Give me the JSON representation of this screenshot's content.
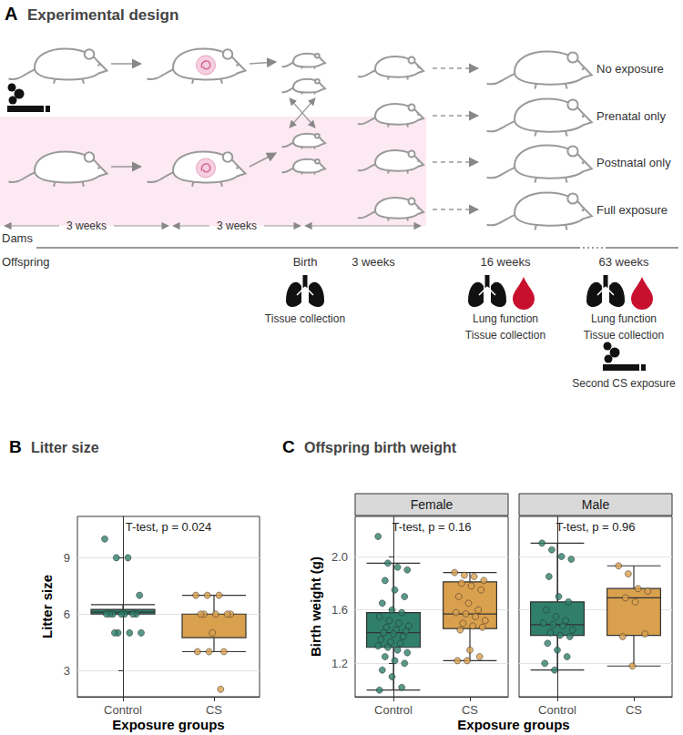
{
  "diagram": {
    "panel": "A",
    "title": "Experimental design",
    "groups": [
      "No exposure",
      "Prenatal only",
      "Postnatal only",
      "Full exposure"
    ],
    "dams_label": "Dams",
    "offspring_label": "Offspring",
    "dam_periods": [
      "3 weeks",
      "3 weeks"
    ],
    "timepoints": [
      {
        "label": "Birth",
        "events": [
          "Tissue collection"
        ]
      },
      {
        "label": "3 weeks",
        "events": []
      },
      {
        "label": "16 weeks",
        "events": [
          "Lung function",
          "Tissue collection"
        ]
      },
      {
        "label": "63 weeks",
        "events": [
          "Lung function",
          "Tissue collection"
        ],
        "note": "Second CS exposure"
      }
    ]
  },
  "chart_data": [
    {
      "type": "boxplot",
      "panel": "B",
      "title": "Litter size",
      "categories": [
        "Control",
        "CS"
      ],
      "colors": [
        "#2f7f6b",
        "#d9a04e"
      ],
      "boxes": [
        [
          6,
          6,
          6.1,
          6.25,
          6.5
        ],
        [
          4,
          4.75,
          6,
          6,
          7
        ]
      ],
      "points": [
        [
          10,
          9,
          9,
          7,
          6,
          6,
          6,
          6,
          6,
          6,
          6,
          5,
          5,
          5,
          5
        ],
        [
          7,
          7,
          7,
          6,
          6,
          6,
          6,
          6,
          5,
          4,
          4,
          4,
          2
        ]
      ],
      "annotation": "T-test, p = 0.024",
      "x_label": "Exposure groups",
      "y_label": "Litter size",
      "ylim": [
        1.6,
        11.2
      ],
      "yticks": [
        3,
        6,
        9
      ],
      "grid": true
    },
    {
      "type": "boxplot",
      "panel": "C",
      "title": "Offspring birth weight",
      "categories": [
        "Control",
        "CS"
      ],
      "colors": [
        "#2f7f6b",
        "#d9a04e"
      ],
      "facets": [
        {
          "name": "Female",
          "boxes": [
            [
              1.0,
              1.32,
              1.43,
              1.58,
              1.95
            ],
            [
              1.22,
              1.46,
              1.57,
              1.81,
              1.88
            ]
          ],
          "points": [
            [
              2.15,
              1.95,
              1.92,
              1.9,
              1.82,
              1.75,
              1.7,
              1.65,
              1.6,
              1.58,
              1.55,
              1.52,
              1.5,
              1.48,
              1.47,
              1.45,
              1.44,
              1.43,
              1.42,
              1.4,
              1.38,
              1.36,
              1.35,
              1.33,
              1.32,
              1.3,
              1.28,
              1.25,
              1.22,
              1.2,
              1.15,
              1.1,
              1.02,
              1.0
            ],
            [
              1.88,
              1.86,
              1.85,
              1.82,
              1.8,
              1.78,
              1.75,
              1.7,
              1.65,
              1.6,
              1.58,
              1.57,
              1.55,
              1.52,
              1.5,
              1.48,
              1.47,
              1.45,
              1.3,
              1.25,
              1.22,
              1.22
            ]
          ],
          "annotation": "T-test, p = 0.16"
        },
        {
          "name": "Male",
          "boxes": [
            [
              1.15,
              1.41,
              1.49,
              1.66,
              2.1
            ],
            [
              1.18,
              1.41,
              1.69,
              1.76,
              1.93
            ]
          ],
          "points": [
            [
              2.1,
              2.05,
              2.0,
              1.98,
              1.85,
              1.7,
              1.66,
              1.6,
              1.55,
              1.52,
              1.5,
              1.49,
              1.48,
              1.45,
              1.43,
              1.41,
              1.4,
              1.35,
              1.3,
              1.25,
              1.2,
              1.15
            ],
            [
              1.93,
              1.87,
              1.76,
              1.74,
              1.69,
              1.66,
              1.42,
              1.4,
              1.18
            ]
          ],
          "annotation": "T-test, p = 0.96"
        }
      ],
      "x_label": "Exposure groups",
      "y_label": "Birth weight (g)",
      "ylim": [
        0.95,
        2.3
      ],
      "yticks": [
        1.2,
        1.6,
        {
          "value": 2,
          "label": "2.0"
        }
      ],
      "grid": true
    }
  ]
}
